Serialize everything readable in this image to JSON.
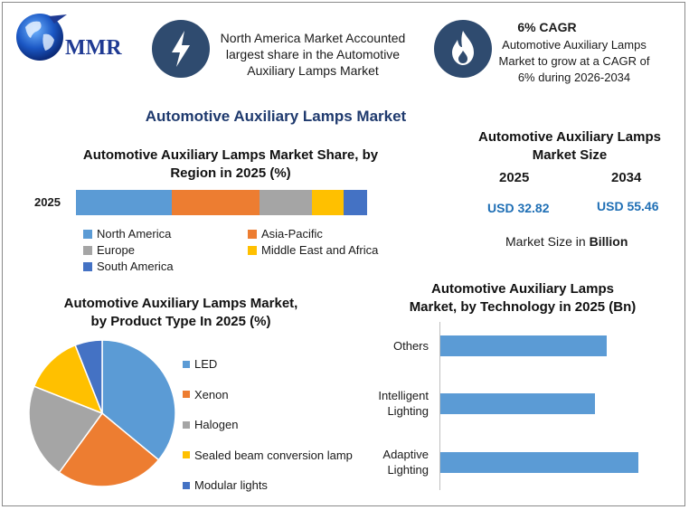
{
  "header": {
    "logo_text": "MMR",
    "box1_text": [
      "North America Market Accounted",
      "largest share in the Automotive",
      "Auxiliary Lamps Market"
    ],
    "box2_title": "6% CAGR",
    "box2_text": [
      "Automotive Auxiliary Lamps",
      "Market to grow at a CAGR of",
      "6% during 2026-2034"
    ]
  },
  "main_title": "Automotive Auxiliary Lamps Market",
  "market_size": {
    "title": [
      "Automotive Auxiliary Lamps",
      "Market Size"
    ],
    "year1": "2025",
    "year2": "2034",
    "value1": "USD 32.82",
    "value2": "USD 55.46",
    "note_prefix": "Market Size in ",
    "note_bold": "Billion"
  },
  "chart_data": [
    {
      "type": "bar",
      "orientation": "horizontal-stacked",
      "title": "Automotive Auxiliary Lamps Market Share, by Region in 2025 (%)",
      "title_lines": [
        "Automotive Auxiliary Lamps Market Share, by",
        "Region in 2025 (%)"
      ],
      "categories": [
        "2025"
      ],
      "series": [
        {
          "name": "North America",
          "values": [
            33
          ],
          "color": "#5b9bd5"
        },
        {
          "name": "Asia-Pacific",
          "values": [
            30
          ],
          "color": "#ed7d31"
        },
        {
          "name": "Europe",
          "values": [
            18
          ],
          "color": "#a5a5a5"
        },
        {
          "name": "Middle East and Africa",
          "values": [
            11
          ],
          "color": "#ffc000"
        },
        {
          "name": "South America",
          "values": [
            8
          ],
          "color": "#4472c4"
        }
      ],
      "legend_placement": "bottom"
    },
    {
      "type": "pie",
      "title": "Automotive Auxiliary Lamps Market, by Product Type In 2025 (%)",
      "title_lines": [
        "Automotive Auxiliary Lamps Market,",
        "by Product Type In 2025 (%)"
      ],
      "categories": [
        "LED",
        "Xenon",
        "Halogen",
        "Sealed beam conversion lamp",
        "Modular lights"
      ],
      "values": [
        36,
        24,
        21,
        13,
        6
      ],
      "colors": [
        "#5b9bd5",
        "#ed7d31",
        "#a5a5a5",
        "#ffc000",
        "#4472c4"
      ],
      "legend_placement": "right"
    },
    {
      "type": "bar",
      "orientation": "horizontal",
      "title": "Automotive Auxiliary Lamps Market, by Technology in 2025 (Bn)",
      "title_lines": [
        "Automotive Auxiliary Lamps",
        "Market, by Technology in 2025 (Bn)"
      ],
      "categories": [
        "Others",
        "Intelligent Lighting",
        "Adaptive Lighting"
      ],
      "category_lines": [
        [
          "Others"
        ],
        [
          "Intelligent",
          "Lighting"
        ],
        [
          "Adaptive",
          "Lighting"
        ]
      ],
      "values": [
        8.5,
        7.9,
        10.1
      ],
      "xlim": [
        0,
        12
      ],
      "color": "#5b9bd5"
    }
  ]
}
